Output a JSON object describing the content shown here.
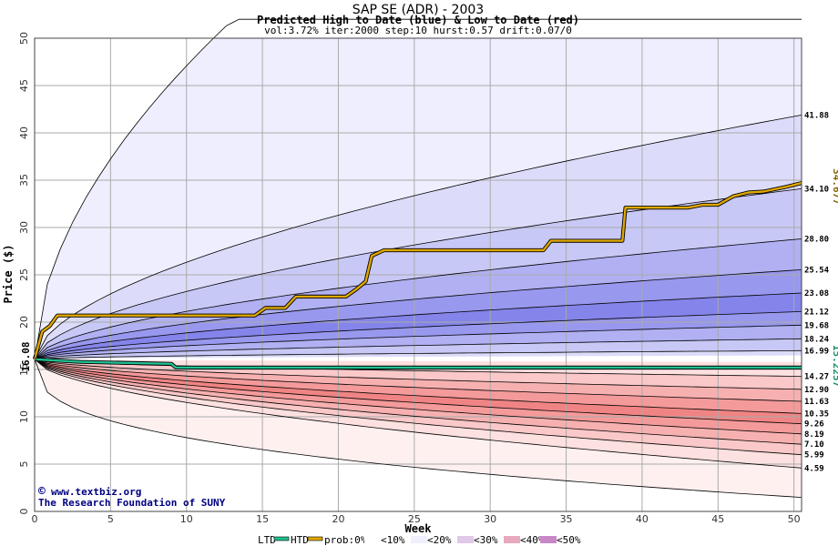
{
  "chart_data": {
    "type": "area",
    "title": "SAP SE (ADR) - 2003",
    "subtitle": "Predicted High to Date (blue) &  Low to Date (red)",
    "params": "vol:3.72% iter:2000 step:10 hurst:0.57 drift:0.07/0",
    "xlabel": "Week",
    "ylabel": "Price ($)",
    "xlim": [
      0,
      50.5
    ],
    "ylim": [
      0,
      50
    ],
    "x_ticks": [
      "0",
      "5",
      "10",
      "15",
      "20",
      "25",
      "30",
      "35",
      "40",
      "45",
      "50"
    ],
    "y_ticks": [
      "0",
      "5",
      "10",
      "15",
      "20",
      "25",
      "30",
      "35",
      "40",
      "45",
      "50"
    ],
    "grid": true,
    "start_price": 16.08,
    "start_label": "16.08",
    "high_percentiles": [
      {
        "end": 50.0,
        "fill": "#eeeeff",
        "kind": "outer"
      },
      {
        "end": 41.88,
        "label": "41.88",
        "fill": "#dcdcfa"
      },
      {
        "end": 34.1,
        "label": "34.10",
        "fill": "#c8c8f6"
      },
      {
        "end": 28.8,
        "label": "28.80",
        "fill": "#b0b0f2"
      },
      {
        "end": 25.54,
        "label": "25.54",
        "fill": "#9898ee"
      },
      {
        "end": 23.08,
        "label": "23.08",
        "fill": "#8484ea"
      },
      {
        "end": 21.12,
        "label": "21.12",
        "fill": "#9898ee"
      },
      {
        "end": 19.68,
        "label": "19.68",
        "fill": "#b0b0f2"
      },
      {
        "end": 18.24,
        "label": "18.24",
        "fill": "#c8c8f6"
      },
      {
        "end": 16.99,
        "label": "16.99",
        "fill": "#dcdcfa"
      }
    ],
    "low_percentiles": [
      {
        "end": 14.27,
        "label": "14.27",
        "fill": "#fde0e0"
      },
      {
        "end": 12.9,
        "label": "12.90",
        "fill": "#fac8c8"
      },
      {
        "end": 11.63,
        "label": "11.63",
        "fill": "#f7b0b0"
      },
      {
        "end": 10.35,
        "label": "10.35",
        "fill": "#f49a9a"
      },
      {
        "end": 9.26,
        "label": "9.26",
        "fill": "#f08484"
      },
      {
        "end": 8.19,
        "label": "8.19",
        "fill": "#f49a9a"
      },
      {
        "end": 7.1,
        "label": "7.10",
        "fill": "#f7b0b0"
      },
      {
        "end": 5.99,
        "label": "5.99",
        "fill": "#fac8c8"
      },
      {
        "end": 4.59,
        "label": "4.59",
        "fill": "#fde0e0"
      },
      {
        "end": 1.0,
        "fill": "#fff0f0",
        "kind": "outer"
      }
    ],
    "htd_series": {
      "name": "HTD",
      "color": "#e0a800",
      "x": [
        0,
        0.5,
        1.0,
        1.5,
        10,
        14.5,
        15.2,
        16.5,
        17.2,
        20.5,
        21.2,
        21.8,
        22.2,
        23.0,
        33.5,
        34.0,
        38.7,
        38.9,
        43.0,
        44.0,
        45.0,
        46.0,
        47.0,
        48.0,
        49.5,
        50.5
      ],
      "values": [
        16.08,
        19.0,
        19.6,
        20.7,
        20.7,
        20.7,
        21.5,
        21.5,
        22.7,
        22.7,
        23.5,
        24.3,
        27.0,
        27.6,
        27.6,
        28.6,
        28.6,
        32.1,
        32.1,
        32.4,
        32.4,
        33.3,
        33.7,
        33.8,
        34.3,
        34.7
      ],
      "end_label": "34.677",
      "end_label_color": "#8b6500"
    },
    "ltd_series": {
      "name": "LTD",
      "color": "#20c090",
      "x": [
        0,
        3.0,
        9.0,
        9.3,
        50.5
      ],
      "values": [
        16.08,
        15.8,
        15.6,
        15.2,
        15.2
      ],
      "end_label": "15.2257",
      "end_label_color": "#209070"
    },
    "legend": {
      "position": "bottom",
      "ltd": "LTD",
      "htd": "HTD",
      "prob0": "prob:0%",
      "p10": "<10%",
      "p20": "<20%",
      "p30": "<30%",
      "p40": "<40%",
      "p50": "<50%"
    },
    "credit_line1": "www.textbiz.org",
    "credit_line2": "The Research Foundation of SUNY",
    "copyright_symbol": "©"
  }
}
